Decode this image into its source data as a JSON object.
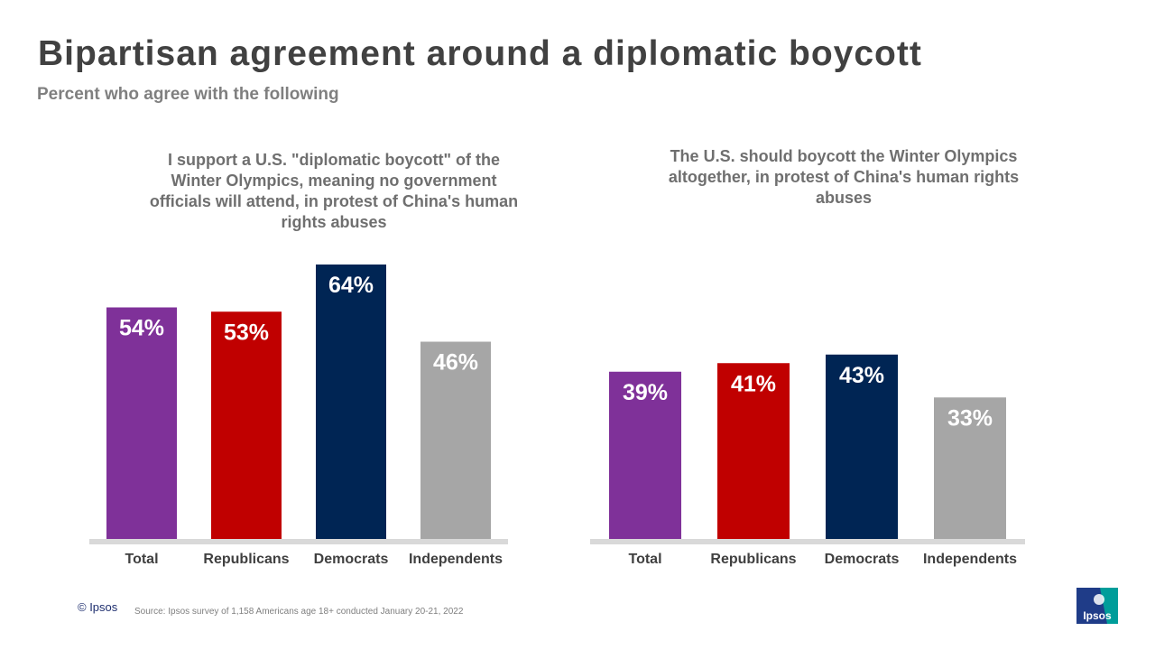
{
  "title": "Bipartisan agreement around a diplomatic boycott",
  "subtitle": "Percent who agree with the following",
  "chart_data": [
    {
      "type": "bar",
      "title": "I support a U.S. \"diplomatic boycott\" of the Winter Olympics, meaning no government officials will attend, in protest of China's human rights abuses",
      "categories": [
        "Total",
        "Republicans",
        "Democrats",
        "Independents"
      ],
      "values": [
        54,
        53,
        64,
        46
      ],
      "value_labels": [
        "54%",
        "53%",
        "64%",
        "46%"
      ],
      "colors": [
        "#7f3199",
        "#c00000",
        "#002554",
        "#a6a6a6"
      ],
      "ylim": [
        0,
        100
      ],
      "xlabel": "",
      "ylabel": ""
    },
    {
      "type": "bar",
      "title": "The U.S. should boycott the Winter Olympics altogether, in protest of China's human rights abuses",
      "categories": [
        "Total",
        "Republicans",
        "Democrats",
        "Independents"
      ],
      "values": [
        39,
        41,
        43,
        33
      ],
      "value_labels": [
        "39%",
        "41%",
        "43%",
        "33%"
      ],
      "colors": [
        "#7f3199",
        "#c00000",
        "#002554",
        "#a6a6a6"
      ],
      "ylim": [
        0,
        100
      ],
      "xlabel": "",
      "ylabel": ""
    }
  ],
  "footer": {
    "copyright": "© Ipsos",
    "source": "Source: Ipsos survey of 1,158 Americans age 18+ conducted January 20-21, 2022",
    "logo_text": "Ipsos"
  },
  "colors": {
    "baseline": "#d9d9d9",
    "label_text": "#ffffff",
    "category_text": "#404040",
    "logo_blue": "#1f3c88",
    "logo_teal": "#009d9a"
  }
}
